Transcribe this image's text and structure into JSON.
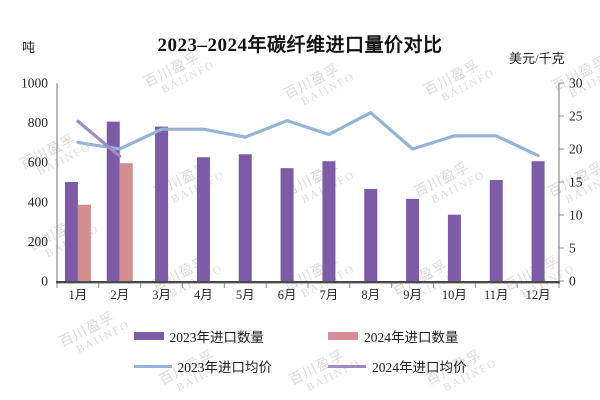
{
  "watermark": {
    "line1": "百川盈孚",
    "line2": "BAIINFO"
  },
  "chart_data": {
    "type": "combo",
    "title": "2023–2024年碳纤维进口量价对比",
    "categories": [
      "1月",
      "2月",
      "3月",
      "4月",
      "5月",
      "6月",
      "7月",
      "8月",
      "9月",
      "10月",
      "11月",
      "12月"
    ],
    "left_axis": {
      "label": "吨",
      "min": 0,
      "max": 1000,
      "step": 200
    },
    "right_axis": {
      "label": "美元/千克",
      "min": 0,
      "max": 30,
      "step": 5
    },
    "grid": "off",
    "legend_position": "bottom",
    "series": [
      {
        "name": "2023年进口数量",
        "type": "bar",
        "axis": "left",
        "color": "#7D5BA6",
        "values": [
          500,
          805,
          780,
          625,
          640,
          570,
          605,
          465,
          415,
          335,
          510,
          605
        ]
      },
      {
        "name": "2024年进口数量",
        "type": "bar",
        "axis": "left",
        "color": "#D28E91",
        "values": [
          385,
          595,
          null,
          null,
          null,
          null,
          null,
          null,
          null,
          null,
          null,
          null
        ]
      },
      {
        "name": "2023年进口均价",
        "type": "line",
        "axis": "right",
        "color": "#95B3D7",
        "values": [
          21,
          20,
          23,
          23,
          21.8,
          24.3,
          22.2,
          25.5,
          20,
          22,
          22,
          19
        ]
      },
      {
        "name": "2024年进口均价",
        "type": "line",
        "axis": "right",
        "color": "#9E8BC2",
        "values": [
          24.2,
          18.9,
          null,
          null,
          null,
          null,
          null,
          null,
          null,
          null,
          null,
          null
        ]
      }
    ]
  }
}
